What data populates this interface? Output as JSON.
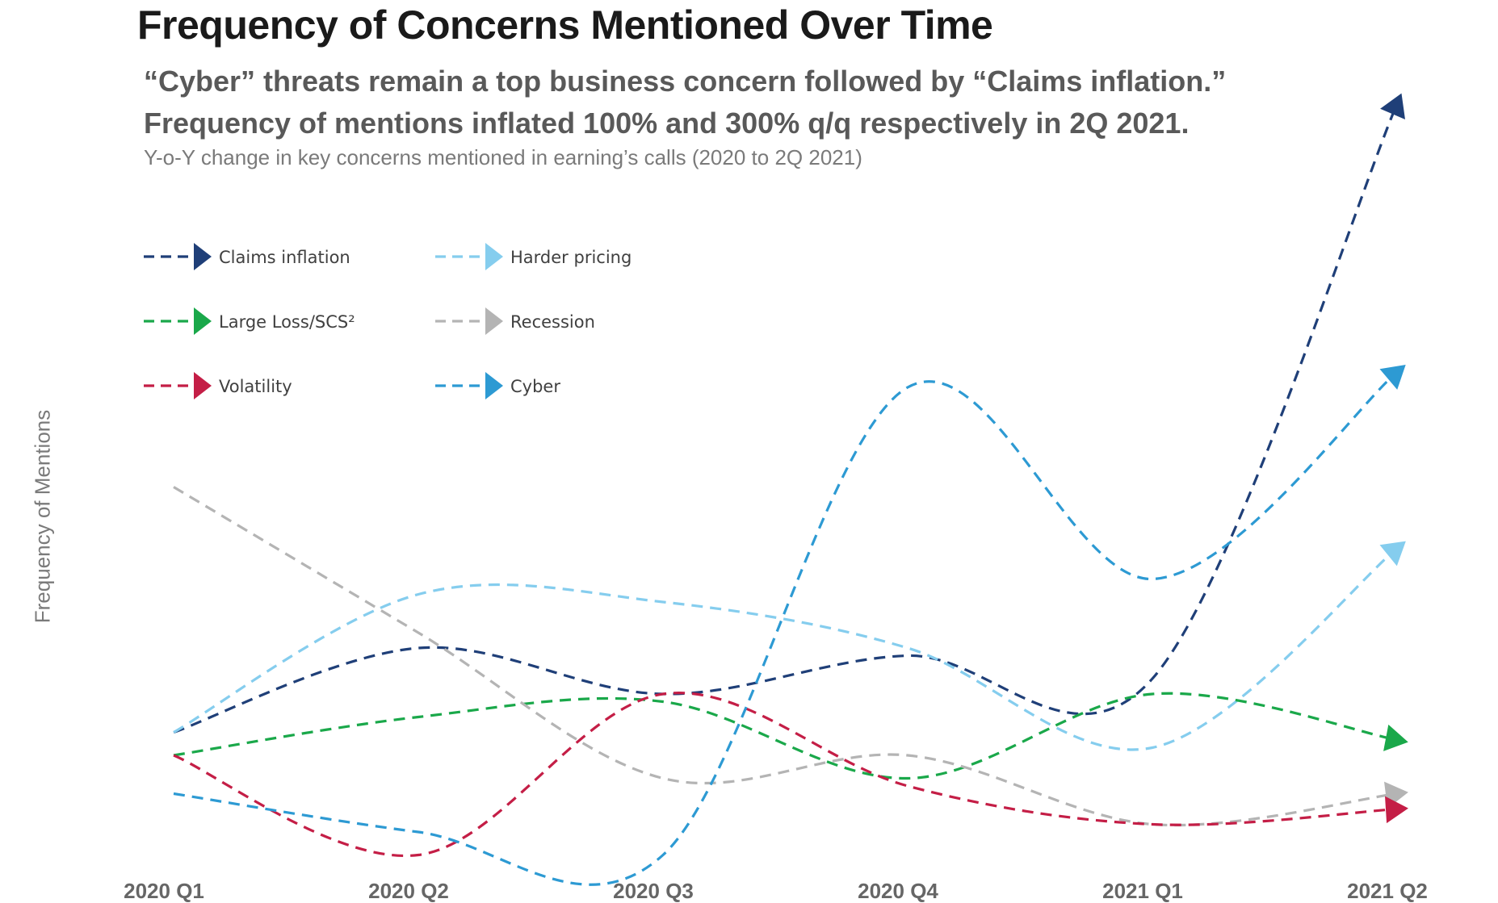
{
  "header": {
    "title": "Frequency of Concerns Mentioned Over Time",
    "subtitle_line1": "“Cyber” threats remain a top business concern followed by “Claims inflation.”",
    "subtitle_line2": "Frequency of mentions inflated 100% and 300% q/q respectively in 2Q 2021.",
    "note": "Y-o-Y change in key concerns mentioned in earning’s calls (2020 to 2Q 2021)"
  },
  "chart_data": {
    "type": "line",
    "title": "Frequency of Concerns Mentioned Over Time",
    "xlabel": "",
    "ylabel": "Frequency of Mentions",
    "categories": [
      "2020 Q1",
      "2020 Q2",
      "2020 Q3",
      "2020 Q4",
      "2021 Q1",
      "2021 Q2"
    ],
    "ylim": [
      0,
      10
    ],
    "y_tick_labels_shown": false,
    "grid": false,
    "legend_position": "top-left",
    "line_style": "dashed-with-arrowheads",
    "series": [
      {
        "name": "Claims inflation",
        "color": "#1f3f78",
        "values": [
          1.5,
          2.6,
          2.0,
          2.5,
          2.2,
          9.7
        ]
      },
      {
        "name": "Harder pricing",
        "color": "#85cdee",
        "values": [
          1.5,
          3.3,
          3.2,
          2.6,
          1.3,
          3.9
        ]
      },
      {
        "name": "Large Loss/SCS²",
        "color": "#1aa84a",
        "values": [
          1.2,
          1.7,
          1.9,
          0.9,
          2.0,
          1.4
        ]
      },
      {
        "name": "Recession",
        "color": "#b4b4b4",
        "values": [
          4.7,
          2.8,
          0.9,
          1.2,
          0.3,
          0.7
        ]
      },
      {
        "name": "Volatility",
        "color": "#c41e46",
        "values": [
          1.2,
          -0.1,
          2.0,
          0.8,
          0.3,
          0.5
        ]
      },
      {
        "name": "Cyber",
        "color": "#2d9ad3",
        "values": [
          0.7,
          0.2,
          -0.1,
          6.0,
          3.5,
          6.2
        ]
      }
    ]
  }
}
